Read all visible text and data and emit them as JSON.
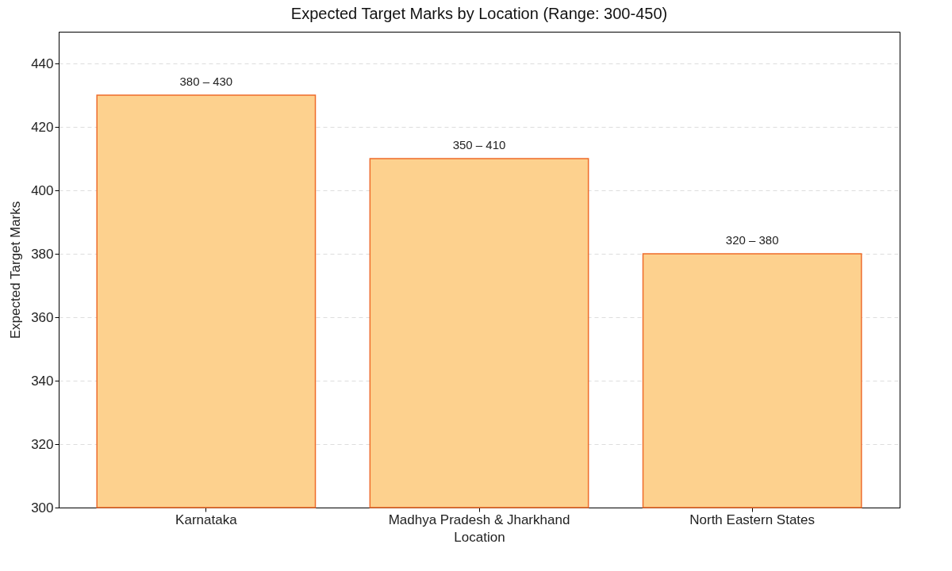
{
  "chart_data": {
    "type": "bar",
    "title": "Expected Target Marks by Location (Range: 300-450)",
    "xlabel": "Location",
    "ylabel": "Expected Target Marks",
    "categories": [
      "Karnataka",
      "Madhya Pradesh & Jharkhand",
      "North Eastern States"
    ],
    "values": [
      430,
      410,
      380
    ],
    "annotations": [
      {
        "text": "380 – 430",
        "x": "Karnataka",
        "y": 430
      },
      {
        "text": "350 – 410",
        "x": "Madhya Pradesh & Jharkhand",
        "y": 410
      },
      {
        "text": "320 – 380",
        "x": "North Eastern States",
        "y": 380
      }
    ],
    "color": "#fdd18e",
    "ylim": [
      300,
      450
    ],
    "yticks": [
      300,
      320,
      340,
      360,
      380,
      400,
      420,
      440
    ],
    "grid": "y"
  }
}
